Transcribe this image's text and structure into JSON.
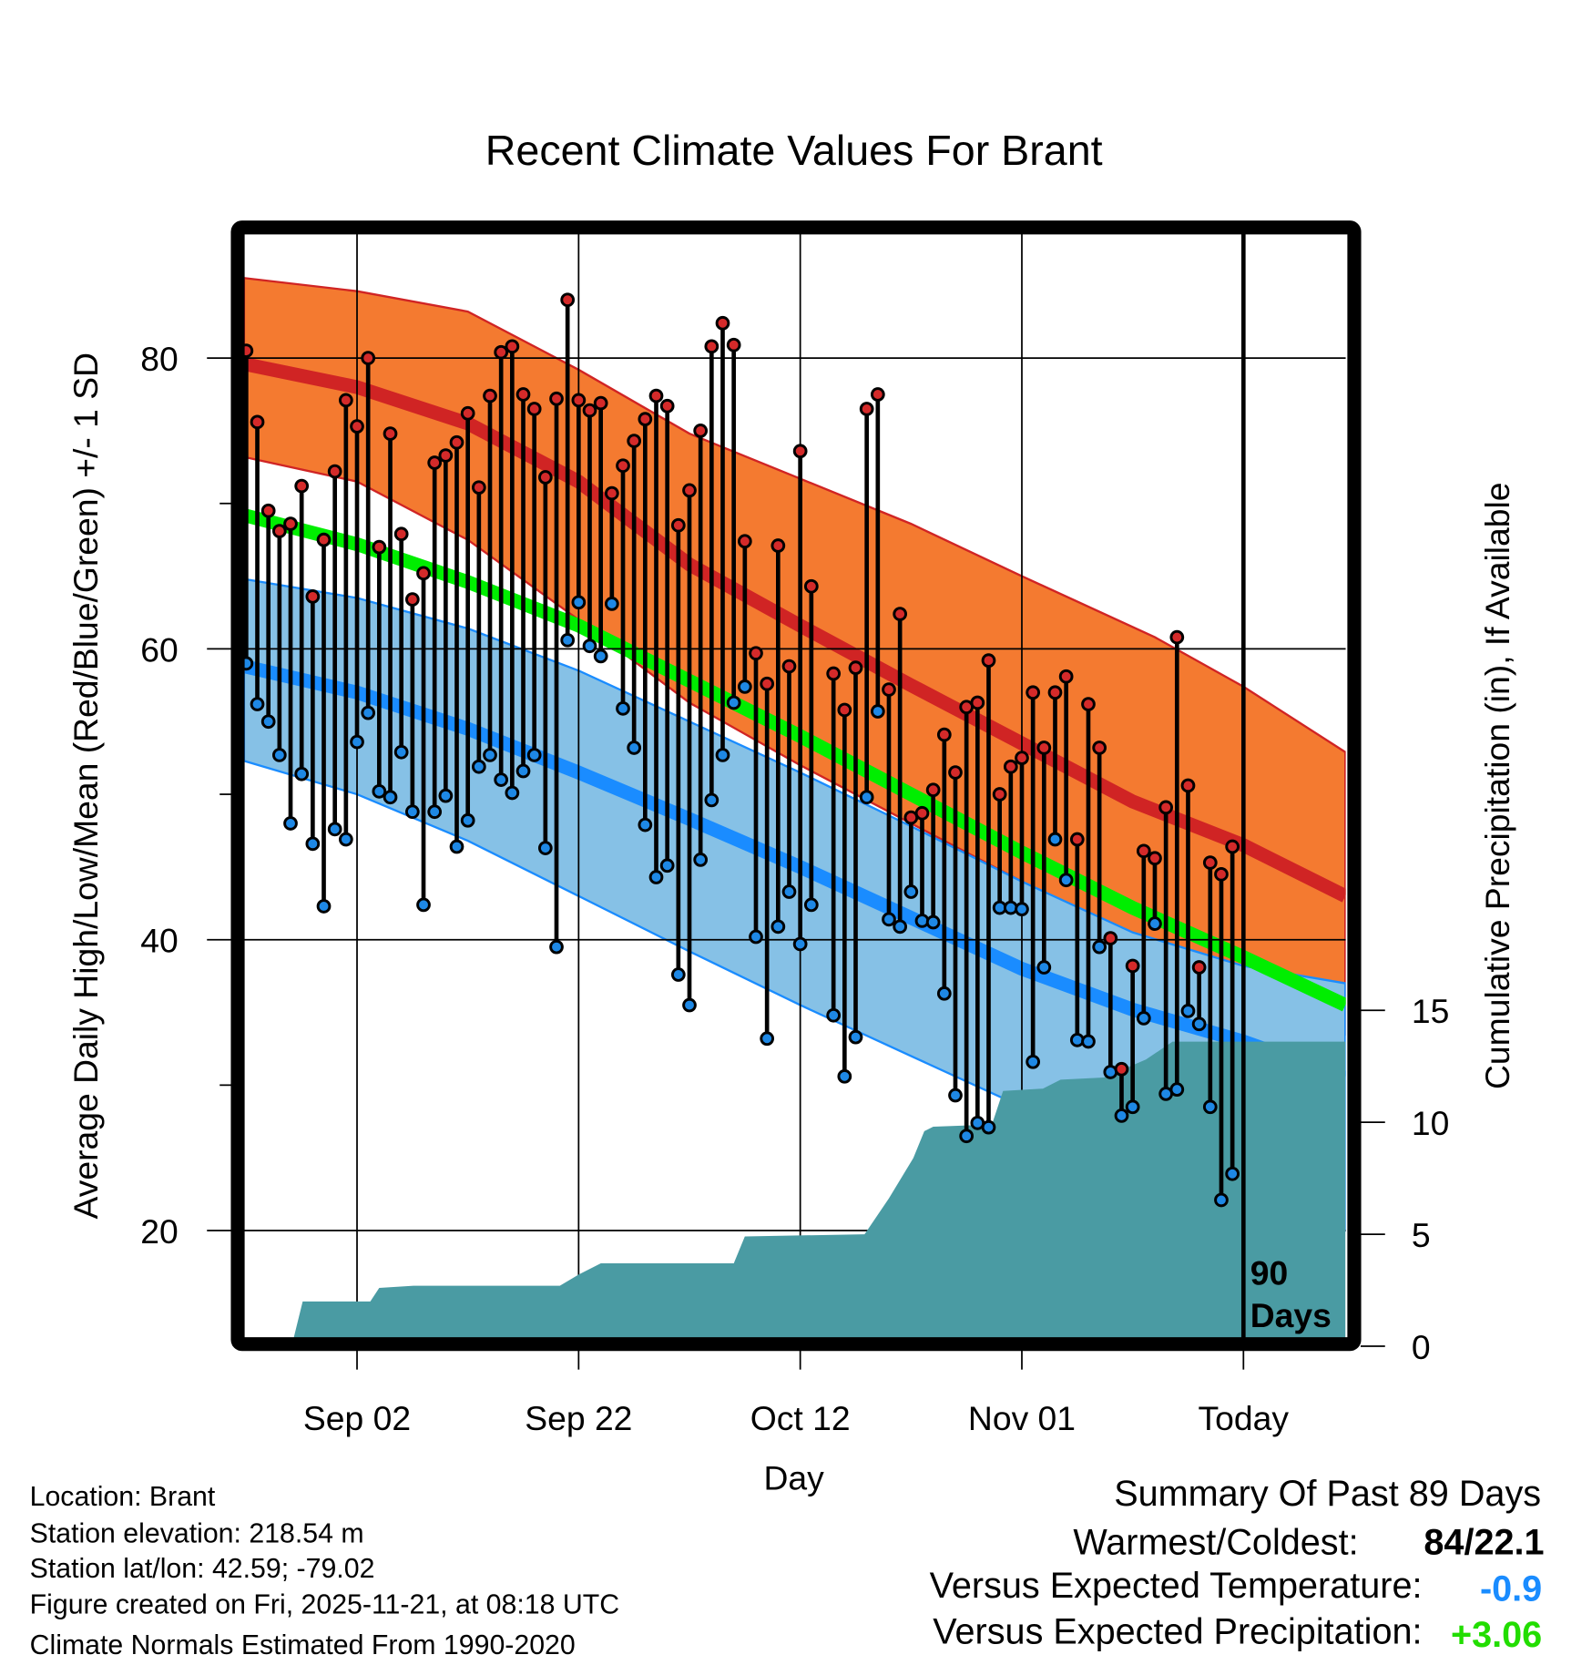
{
  "chart_data": {
    "type": "line",
    "title": "Recent Climate Values For Brant",
    "xlabel": "Day",
    "ylabel": "Average Daily High/Low/Mean (Red/Blue/Green) +/- 1 SD",
    "y2label": "Cumulative Precipitation (in), If Available",
    "x_unit": "days since Aug 23",
    "xlim": [
      -0.2,
      99.2
    ],
    "ylim": [
      12.6,
      88.5
    ],
    "y2lim": [
      0,
      49
    ],
    "x_ticks": [
      {
        "day": 10,
        "label": "Sep 02"
      },
      {
        "day": 30,
        "label": "Sep 22"
      },
      {
        "day": 50,
        "label": "Oct 12"
      },
      {
        "day": 70,
        "label": "Nov 01"
      },
      {
        "day": 90,
        "label": "Today"
      }
    ],
    "y_ticks": [
      {
        "value": 20,
        "label": "20"
      },
      {
        "value": 40,
        "label": "40"
      },
      {
        "value": 60,
        "label": "60"
      },
      {
        "value": 80,
        "label": "80"
      }
    ],
    "y_minor_ticks": [
      30,
      50,
      70
    ],
    "y2_ticks": [
      {
        "value": 0,
        "label": "0"
      },
      {
        "value": 5,
        "label": "5"
      },
      {
        "value": 10,
        "label": "10"
      },
      {
        "value": 15,
        "label": "15"
      }
    ],
    "today_marker": {
      "day": 90,
      "label_line1": "90",
      "label_line2": "Days"
    },
    "grid": true,
    "daily": [
      [
        0,
        80.5,
        59.0
      ],
      [
        1,
        75.6,
        56.2
      ],
      [
        2,
        69.5,
        55.0
      ],
      [
        3,
        68.1,
        52.7
      ],
      [
        4,
        68.6,
        48.0
      ],
      [
        5,
        71.2,
        51.4
      ],
      [
        6,
        63.6,
        46.6
      ],
      [
        7,
        67.5,
        42.3
      ],
      [
        8,
        72.2,
        47.6
      ],
      [
        9,
        77.1,
        46.9
      ],
      [
        10,
        75.3,
        53.6
      ],
      [
        11,
        80.0,
        55.6
      ],
      [
        12,
        67.0,
        50.2
      ],
      [
        13,
        74.8,
        49.8
      ],
      [
        14,
        67.9,
        52.9
      ],
      [
        15,
        63.4,
        48.8
      ],
      [
        16,
        65.2,
        42.4
      ],
      [
        17,
        72.8,
        48.8
      ],
      [
        18,
        73.3,
        49.9
      ],
      [
        19,
        74.2,
        46.4
      ],
      [
        20,
        76.2,
        48.2
      ],
      [
        21,
        71.1,
        51.9
      ],
      [
        22,
        77.4,
        52.7
      ],
      [
        23,
        80.4,
        51.0
      ],
      [
        24,
        80.8,
        50.1
      ],
      [
        25,
        77.5,
        51.6
      ],
      [
        26,
        76.5,
        52.7
      ],
      [
        27,
        71.8,
        46.3
      ],
      [
        28,
        77.2,
        39.5
      ],
      [
        29,
        84.0,
        60.6
      ],
      [
        30,
        77.1,
        63.2
      ],
      [
        31,
        76.4,
        60.2
      ],
      [
        32,
        76.9,
        59.5
      ],
      [
        33,
        70.7,
        63.1
      ],
      [
        34,
        72.6,
        55.9
      ],
      [
        35,
        74.3,
        53.2
      ],
      [
        36,
        75.8,
        47.9
      ],
      [
        37,
        77.4,
        44.3
      ],
      [
        38,
        76.7,
        45.1
      ],
      [
        39,
        68.5,
        37.6
      ],
      [
        40,
        70.9,
        35.5
      ],
      [
        41,
        75.0,
        45.5
      ],
      [
        42,
        80.8,
        49.6
      ],
      [
        43,
        82.4,
        52.7
      ],
      [
        44,
        80.9,
        56.3
      ],
      [
        45,
        67.4,
        57.4
      ],
      [
        46,
        59.7,
        40.2
      ],
      [
        47,
        57.6,
        33.2
      ],
      [
        48,
        67.1,
        40.9
      ],
      [
        49,
        58.8,
        43.3
      ],
      [
        50,
        73.6,
        39.7
      ],
      [
        51,
        64.3,
        42.4
      ],
      [
        53,
        58.3,
        34.8
      ],
      [
        54,
        55.8,
        30.6
      ],
      [
        55,
        58.7,
        33.3
      ],
      [
        56,
        76.5,
        49.8
      ],
      [
        57,
        77.5,
        55.7
      ],
      [
        58,
        57.2,
        41.4
      ],
      [
        59,
        62.4,
        40.9
      ],
      [
        60,
        48.4,
        43.3
      ],
      [
        61,
        48.7,
        41.3
      ],
      [
        62,
        50.3,
        41.2
      ],
      [
        63,
        54.1,
        36.3
      ],
      [
        64,
        51.5,
        29.3
      ],
      [
        65,
        56.0,
        26.5
      ],
      [
        66,
        56.3,
        27.4
      ],
      [
        67,
        59.2,
        27.1
      ],
      [
        68,
        50.0,
        42.2
      ],
      [
        69,
        51.9,
        42.2
      ],
      [
        70,
        52.5,
        42.1
      ],
      [
        71,
        57.0,
        31.6
      ],
      [
        72,
        53.2,
        38.1
      ],
      [
        73,
        57.0,
        46.9
      ],
      [
        74,
        58.1,
        44.1
      ],
      [
        75,
        46.9,
        33.1
      ],
      [
        76,
        56.2,
        33.0
      ],
      [
        77,
        53.2,
        39.5
      ],
      [
        78,
        40.1,
        30.9
      ],
      [
        79,
        31.1,
        27.9
      ],
      [
        80,
        38.2,
        28.5
      ],
      [
        81,
        46.1,
        34.6
      ],
      [
        82,
        45.6,
        41.1
      ],
      [
        83,
        49.1,
        29.4
      ],
      [
        84,
        60.8,
        29.7
      ],
      [
        85,
        50.6,
        35.1
      ],
      [
        86,
        38.1,
        34.2
      ],
      [
        87,
        45.3,
        28.5
      ],
      [
        88,
        44.5,
        22.1
      ],
      [
        89,
        46.4,
        23.9
      ]
    ],
    "normals": {
      "high_plus_sd": [
        [
          -0.2,
          85.5
        ],
        [
          10,
          84.6
        ],
        [
          20,
          83.2
        ],
        [
          30,
          79.2
        ],
        [
          40,
          74.8
        ],
        [
          50,
          71.7
        ],
        [
          60,
          68.6
        ],
        [
          70,
          65.0
        ],
        [
          82,
          60.8
        ],
        [
          90,
          57.4
        ],
        [
          99.2,
          52.9
        ]
      ],
      "high_mean": [
        [
          -0.2,
          79.6
        ],
        [
          10,
          78.0
        ],
        [
          20,
          75.5
        ],
        [
          30,
          71.5
        ],
        [
          40,
          65.8
        ],
        [
          50,
          61.6
        ],
        [
          60,
          57.5
        ],
        [
          70,
          53.5
        ],
        [
          80,
          49.5
        ],
        [
          90,
          46.5
        ],
        [
          99.2,
          43.0
        ]
      ],
      "high_minus_sd": [
        [
          -0.2,
          73.2
        ],
        [
          10,
          71.5
        ],
        [
          20,
          67.5
        ],
        [
          30,
          62.0
        ],
        [
          40,
          56.3
        ],
        [
          50,
          52.0
        ],
        [
          60,
          48.0
        ],
        [
          70,
          44.0
        ],
        [
          80,
          40.0
        ],
        [
          90,
          36.5
        ],
        [
          99.2,
          33.5
        ]
      ],
      "mean": [
        [
          -0.2,
          69.2
        ],
        [
          10,
          67.2
        ],
        [
          20,
          64.6
        ],
        [
          30,
          61.6
        ],
        [
          40,
          57.8
        ],
        [
          50,
          54.0
        ],
        [
          60,
          50.0
        ],
        [
          70,
          46.0
        ],
        [
          80,
          42.2
        ],
        [
          90,
          38.8
        ],
        [
          99.2,
          35.5
        ]
      ],
      "low_plus_sd": [
        [
          -0.2,
          64.8
        ],
        [
          10,
          63.5
        ],
        [
          20,
          61.4
        ],
        [
          30,
          58.5
        ],
        [
          40,
          55.0
        ],
        [
          50,
          51.5
        ],
        [
          60,
          47.8
        ],
        [
          70,
          44.0
        ],
        [
          80,
          40.5
        ],
        [
          90,
          38.2
        ],
        [
          99.2,
          37.0
        ]
      ],
      "low_mean": [
        [
          -0.2,
          58.8
        ],
        [
          10,
          57.0
        ],
        [
          20,
          54.5
        ],
        [
          30,
          51.5
        ],
        [
          40,
          48.3
        ],
        [
          50,
          45.0
        ],
        [
          60,
          41.5
        ],
        [
          70,
          38.0
        ],
        [
          80,
          35.2
        ],
        [
          90,
          33.0
        ],
        [
          99.2,
          30.5
        ]
      ],
      "low_minus_sd": [
        [
          -0.2,
          52.3
        ],
        [
          10,
          50.0
        ],
        [
          20,
          46.8
        ],
        [
          30,
          43.0
        ],
        [
          40,
          39.2
        ],
        [
          50,
          35.5
        ],
        [
          60,
          32.0
        ],
        [
          70,
          28.5
        ],
        [
          80,
          25.0
        ],
        [
          90,
          22.5
        ],
        [
          99.2,
          20.0
        ]
      ]
    },
    "precip_cumulative": [
      [
        -0.2,
        0
      ],
      [
        4.1,
        0
      ],
      [
        5.1,
        2.0
      ],
      [
        11.2,
        2.0
      ],
      [
        12.0,
        2.6
      ],
      [
        15.1,
        2.7
      ],
      [
        28.3,
        2.7
      ],
      [
        30,
        3.2
      ],
      [
        32,
        3.7
      ],
      [
        44,
        3.7
      ],
      [
        45,
        4.9
      ],
      [
        55.8,
        5.0
      ],
      [
        58,
        6.6
      ],
      [
        60.2,
        8.4
      ],
      [
        61.2,
        9.6
      ],
      [
        62,
        9.8
      ],
      [
        67.3,
        9.9
      ],
      [
        68.3,
        11.4
      ],
      [
        71.9,
        11.5
      ],
      [
        73.5,
        11.9
      ],
      [
        77.4,
        12.0
      ],
      [
        81.2,
        12.8
      ],
      [
        83.6,
        13.6
      ],
      [
        99.2,
        13.6
      ]
    ],
    "colors": {
      "high_band": "#f47a30",
      "high_line": "#d02424",
      "mean_line": "#00ee00",
      "low_band": "#86c1e6",
      "low_line": "#1a8cff",
      "precip": "#4a9ba3",
      "high_dot": "#d42a2a",
      "low_dot": "#1e88e5"
    }
  },
  "footer": {
    "location": "Location: Brant",
    "elevation": "Station elevation: 218.54 m",
    "latlon": "Station lat/lon: 42.59; -79.02",
    "created": "Figure created on Fri, 2025-11-21, at 08:18 UTC",
    "normals": "Climate Normals Estimated From 1990-2020"
  },
  "summary": {
    "title": "Summary Of Past 89 Days",
    "warmest_coldest_label": "Warmest/Coldest:",
    "warmest_coldest_value": "84/22.1",
    "temp_label": "Versus Expected Temperature:",
    "temp_value": "-0.9",
    "temp_color": "#1a8cff",
    "precip_label": "Versus Expected Precipitation:",
    "precip_value": "+3.06",
    "precip_color": "#22dd00"
  }
}
